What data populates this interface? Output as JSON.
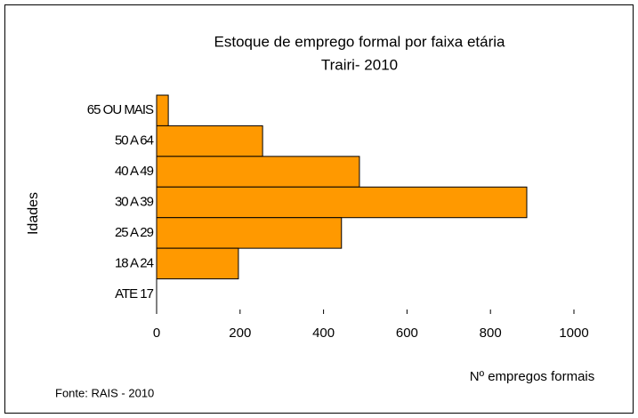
{
  "chart_data": {
    "type": "hbar",
    "title": "Estoque de emprego formal por faixa etária",
    "subtitle": "Trairi- 2010",
    "y_label": "Idades",
    "x_label": "Nº empregos formais",
    "source": "Fonte: RAIS - 2010",
    "categories": [
      "65 OU MAIS",
      "50 A 64",
      "40 A 49",
      "30 A 39",
      "25 A 29",
      "18 A 24",
      "ATE 17"
    ],
    "values": [
      28,
      254,
      486,
      887,
      443,
      196,
      0
    ],
    "color": "#ff9900",
    "xlim": [
      0,
      1000
    ],
    "xticks": [
      0,
      200,
      400,
      600,
      800,
      1000
    ]
  }
}
